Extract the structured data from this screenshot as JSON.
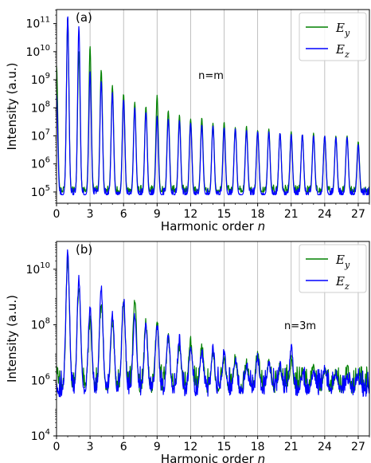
{
  "chart_data": [
    {
      "type": "line",
      "panel_label": "(a)",
      "annotation": "n=m",
      "xlabel": "Harmonic order",
      "xlabel_var": "n",
      "ylabel": "Intensity (a.u.)",
      "xlim": [
        0,
        28
      ],
      "ylim_log10": [
        4.6,
        11.5
      ],
      "log_y": true,
      "xticks": [
        "0",
        "3",
        "6",
        "9",
        "12",
        "15",
        "18",
        "21",
        "24",
        "27"
      ],
      "xtick_values": [
        0,
        3,
        6,
        9,
        12,
        15,
        18,
        21,
        24,
        27
      ],
      "yticks": [
        {
          "base": "10",
          "exp": "5",
          "log": 5
        },
        {
          "base": "10",
          "exp": "6",
          "log": 6
        },
        {
          "base": "10",
          "exp": "7",
          "log": 7
        },
        {
          "base": "10",
          "exp": "8",
          "log": 8
        },
        {
          "base": "10",
          "exp": "9",
          "log": 9
        },
        {
          "base": "10",
          "exp": "10",
          "log": 10
        },
        {
          "base": "10",
          "exp": "11",
          "log": 11
        }
      ],
      "grid_x": true,
      "legend": "top-right",
      "series": [
        {
          "name": "E_y",
          "label_main": "E",
          "label_sub": "y",
          "color": "#008000",
          "peaks_harmonic": [
            0,
            1,
            2,
            3,
            4,
            5,
            6,
            7,
            8,
            9,
            10,
            11,
            12,
            13,
            14,
            15,
            16,
            17,
            18,
            19,
            20,
            21,
            22,
            23,
            24,
            25,
            26,
            27
          ],
          "peaks_log10": [
            9.5,
            11.25,
            10.0,
            10.2,
            9.35,
            8.8,
            8.5,
            8.2,
            8.05,
            8.45,
            7.9,
            7.75,
            7.6,
            7.65,
            7.45,
            7.5,
            7.3,
            7.35,
            7.2,
            7.25,
            7.1,
            7.15,
            7.05,
            7.1,
            7.0,
            7.0,
            7.0,
            6.8
          ],
          "floor_log10": 5.0
        },
        {
          "name": "E_z",
          "label_main": "E",
          "label_sub": "z",
          "color": "#0000ff",
          "peaks_harmonic": [
            0,
            1,
            2,
            3,
            4,
            5,
            6,
            7,
            8,
            9,
            10,
            11,
            12,
            13,
            14,
            15,
            16,
            17,
            18,
            19,
            20,
            21,
            22,
            23,
            24,
            25,
            26,
            27
          ],
          "peaks_log10": [
            8.5,
            11.3,
            10.9,
            9.3,
            8.95,
            8.55,
            8.3,
            8.0,
            7.85,
            7.7,
            7.6,
            7.55,
            7.45,
            7.4,
            7.35,
            7.3,
            7.25,
            7.2,
            7.15,
            7.15,
            7.1,
            7.05,
            7.05,
            7.0,
            7.0,
            6.95,
            6.95,
            6.7
          ],
          "floor_log10": 4.9
        }
      ]
    },
    {
      "type": "line",
      "panel_label": "(b)",
      "annotation": "n=3m",
      "xlabel": "Harmonic order",
      "xlabel_var": "n",
      "ylabel": "Intensity (a.u.)",
      "xlim": [
        0,
        28
      ],
      "ylim_log10": [
        4.0,
        11.0
      ],
      "log_y": true,
      "xticks": [
        "0",
        "3",
        "6",
        "9",
        "12",
        "15",
        "18",
        "21",
        "24",
        "27"
      ],
      "xtick_values": [
        0,
        3,
        6,
        9,
        12,
        15,
        18,
        21,
        24,
        27
      ],
      "yticks": [
        {
          "base": "10",
          "exp": "4",
          "log": 4
        },
        {
          "base": "10",
          "exp": "6",
          "log": 6
        },
        {
          "base": "10",
          "exp": "8",
          "log": 8
        },
        {
          "base": "10",
          "exp": "10",
          "log": 10
        }
      ],
      "grid_x": true,
      "legend": "top-right",
      "series": [
        {
          "name": "E_y",
          "label_main": "E",
          "label_sub": "y",
          "color": "#008000",
          "peaks_harmonic": [
            0,
            1,
            2,
            3,
            4,
            5,
            6,
            7,
            8,
            9,
            10,
            11,
            12,
            13,
            14,
            15,
            16,
            17,
            18,
            19,
            20,
            21,
            22,
            23,
            24,
            25,
            26,
            27
          ],
          "peaks_log10": [
            6.4,
            10.3,
            9.4,
            8.2,
            8.8,
            8.1,
            8.8,
            8.9,
            8.1,
            8.1,
            7.5,
            7.2,
            7.4,
            7.3,
            6.9,
            6.8,
            6.8,
            6.6,
            7.0,
            6.6,
            6.5,
            6.7,
            6.3,
            6.5,
            6.4,
            6.3,
            6.4,
            6.2
          ],
          "floor_log10": 5.7
        },
        {
          "name": "E_z",
          "label_main": "E",
          "label_sub": "z",
          "color": "#0000ff",
          "peaks_harmonic": [
            0,
            1,
            2,
            3,
            4,
            5,
            6,
            7,
            8,
            9,
            10,
            11,
            12,
            13,
            14,
            15,
            16,
            17,
            18,
            19,
            20,
            21,
            22,
            23,
            24,
            25,
            26,
            27
          ],
          "peaks_log10": [
            5.6,
            10.6,
            9.6,
            8.6,
            9.25,
            8.4,
            8.95,
            8.3,
            7.9,
            7.95,
            7.6,
            7.5,
            7.2,
            7.0,
            7.1,
            7.0,
            6.8,
            6.6,
            6.8,
            6.7,
            6.5,
            7.3,
            6.2,
            6.4,
            6.5,
            6.3,
            6.1,
            6.0
          ],
          "floor_log10": 5.6
        }
      ]
    }
  ]
}
